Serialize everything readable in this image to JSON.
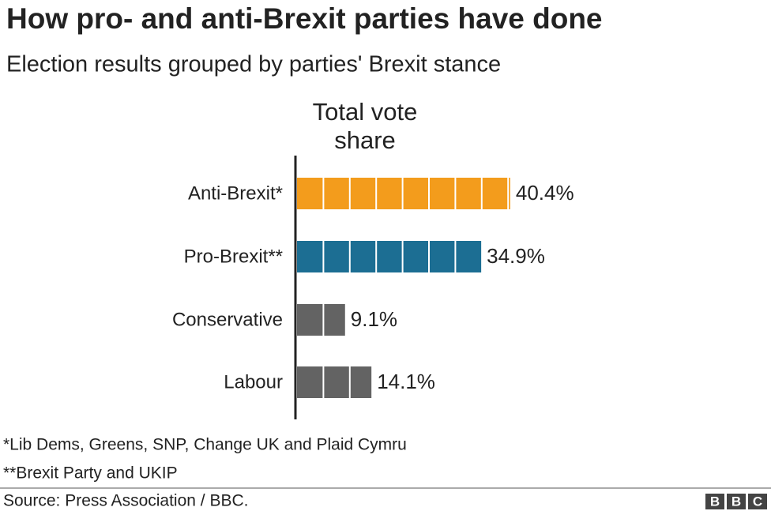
{
  "chart_data": {
    "type": "bar",
    "orientation": "horizontal",
    "title": "How pro- and anti-Brexit parties have done",
    "subtitle": "Election results grouped by parties' Brexit stance",
    "value_axis_label": "Total vote share",
    "categories": [
      "Anti-Brexit*",
      "Pro-Brexit**",
      "Conservative",
      "Labour"
    ],
    "values": [
      40.4,
      34.9,
      9.1,
      14.1
    ],
    "value_labels": [
      "40.4%",
      "34.9%",
      "9.1%",
      "14.1%"
    ],
    "colors": [
      "#f39c1c",
      "#1c6e93",
      "#636363",
      "#636363"
    ],
    "footnotes": [
      "*Lib Dems, Greens, SNP, Change UK and Plaid Cymru",
      "**Brexit Party and UKIP"
    ],
    "source": "Source: Press Association / BBC.",
    "logo": [
      "B",
      "B",
      "C"
    ]
  }
}
